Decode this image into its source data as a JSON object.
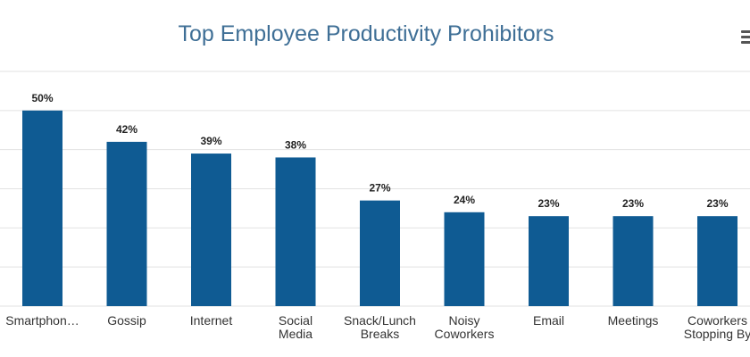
{
  "menu_icon": "hamburger-menu-icon",
  "colors": {
    "bar": "#0f5b93",
    "grid": "#e2e2e2",
    "title": "#3f6f96"
  },
  "chart_data": {
    "type": "bar",
    "title": "Top Employee Productivity Prohibitors",
    "xlabel": "",
    "ylabel": "",
    "ylim": [
      0,
      60
    ],
    "grid": true,
    "categories": [
      [
        "Smartphon…"
      ],
      [
        "Gossip"
      ],
      [
        "Internet"
      ],
      [
        "Social",
        "Media"
      ],
      [
        "Snack/Lunch",
        "Breaks"
      ],
      [
        "Noisy",
        "Coworkers"
      ],
      [
        "Email"
      ],
      [
        "Meetings"
      ],
      [
        "Coworkers",
        "Stopping By"
      ]
    ],
    "values": [
      50,
      42,
      39,
      38,
      27,
      24,
      23,
      23,
      23
    ],
    "data_labels": [
      "50%",
      "42%",
      "39%",
      "38%",
      "27%",
      "24%",
      "23%",
      "23%",
      "23%"
    ]
  }
}
